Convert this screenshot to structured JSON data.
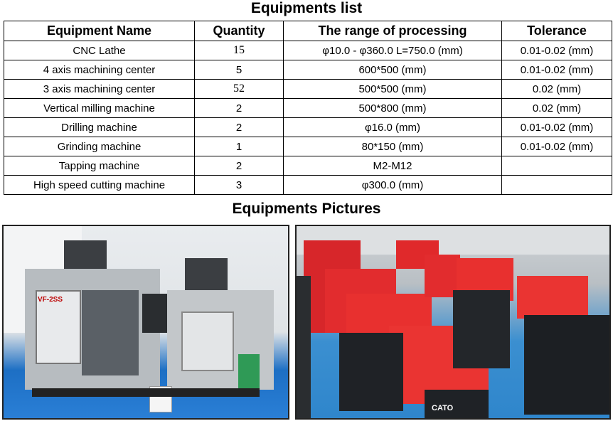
{
  "titles": {
    "list": "Equipments list",
    "pictures": "Equipments Pictures"
  },
  "table": {
    "headers": [
      "Equipment Name",
      "Quantity",
      "The range of processing",
      "Tolerance"
    ],
    "rows": [
      [
        "CNC Lathe",
        "15",
        "φ10.0 - φ360.0  L=750.0 (mm)",
        "0.01-0.02 (mm)"
      ],
      [
        "4 axis machining center",
        "5",
        "600*500 (mm)",
        "0.01-0.02 (mm)"
      ],
      [
        "3 axis machining center",
        "52",
        "500*500 (mm)",
        "0.02 (mm)"
      ],
      [
        "Vertical milling machine",
        "2",
        "500*800 (mm)",
        "0.02 (mm)"
      ],
      [
        "Drilling machine",
        "2",
        "φ16.0 (mm)",
        "0.01-0.02 (mm)"
      ],
      [
        "Grinding machine",
        "1",
        "80*150 (mm)",
        "0.01-0.02 (mm)"
      ],
      [
        "Tapping machine",
        "2",
        "M2-M12",
        ""
      ],
      [
        "High speed cutting machine",
        "3",
        "φ300.0 (mm)",
        ""
      ]
    ]
  },
  "pictures": [
    {
      "subject": "grey vertical machining centers",
      "logo_text": "VF-2SS"
    },
    {
      "subject": "rows of red machining centers",
      "logo_text": "CATO"
    }
  ]
}
